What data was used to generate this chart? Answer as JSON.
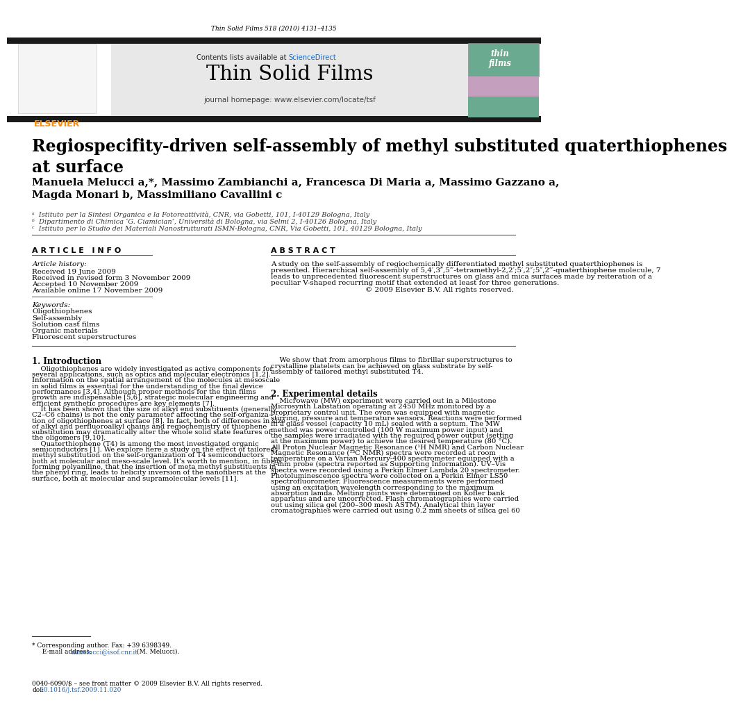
{
  "page_width": 9.92,
  "page_height": 13.23,
  "background_color": "#ffffff",
  "journal_header_text": "Thin Solid Films 518 (2010) 4131–4135",
  "journal_name": "Thin Solid Films",
  "journal_homepage": "journal homepage: www.elsevier.com/locate/tsf",
  "sciencedirect_text": "Contents lists available at ScienceDirect",
  "title": "Regiospecifity-driven self-assembly of methyl substituted quaterthiophenes\nat surface",
  "authors": "Manuela Melucci a,*, Massimo Zambianchi a, Francesca Di Maria a, Massimo Gazzano a,\nMagda Monari b, Massimiliano Cavallini c",
  "affil_a": "ᵃ  Istituto per la Sintesi Organica e la Fotoreattività, CNR, via Gobetti, 101, I-40129 Bologna, Italy",
  "affil_b": "ᵇ  Dipartimento di Chimica ‘G. Ciamician’, Università di Bologna, via Selmi 2, I-40126 Bologna, Italy",
  "affil_c": "ᶜ  Istituto per lo Studio dei Materiali Nanostrutturati ISMN-Bologna, CNR, Via Gobetti, 101, 40129 Bologna, Italy",
  "article_info_header": "A R T I C L E   I N F O",
  "abstract_header": "A B S T R A C T",
  "article_history_label": "Article history:",
  "received": "Received 19 June 2009",
  "received_revised": "Received in revised form 3 November 2009",
  "accepted": "Accepted 10 November 2009",
  "available_online": "Available online 17 November 2009",
  "keywords_label": "Keywords:",
  "keywords": [
    "Oligothiophenes",
    "Self-assembly",
    "Solution cast films",
    "Organic materials",
    "Fluorescent superstructures"
  ],
  "abstract_text": "A study on the self-assembly of regiochemically differentiated methyl substituted quaterthiophenes is\npresented. Hierarchical self-assembly of 5,4′,3″,5‴-tetramethyl-2,2′;5′,2″;5″,2‴-quaterthiophene molecule, 7\nleads to unprecedented fluorescent superstructures on glass and mica surfaces made by reiteration of a\npeculiar V-shaped recurring motif that extended at least for three generations.",
  "abstract_copyright": "© 2009 Elsevier B.V. All rights reserved.",
  "intro_header": "1. Introduction",
  "intro_text_lines": [
    "    Oligothiophenes are widely investigated as active components for",
    "several applications, such as optics and molecular electronics [1,2].",
    "Information on the spatial arrangement of the molecules at mesoscale",
    "in solid films is essential for the understanding of the final device",
    "performances [3,4]. Although proper methods for the thin films",
    "growth are indispensable [5,6], strategic molecular engineering and",
    "efficient synthetic procedures are key elements [7].",
    "    It has been shown that the size of alkyl end substituents (generally",
    "C2–C6 chains) is not the only parameter affecting the self-organiza-",
    "tion of oligothiophenes at surface [8]. In fact, both of differences in size",
    "of alkyl and perfluoroalkyl chains and regiochemistry of thiophene",
    "substitution may dramatically alter the whole solid state features of",
    "the oligomers [9,10].",
    "    Quaterthiophene (T4) is among the most investigated organic",
    "semiconductors [1]. We explore here a study on the effect of tailored",
    "methyl substitution on the self-organization of T4 semiconductors",
    "both at molecular and meso-scale level. It’s worth to mention, in fibrils",
    "forming polyaniline, that the insertion of meta methyl substituents in",
    "the phenyl ring, leads to helicity inversion of the nanofibers at the",
    "surface, both at molecular and supramolecular levels [11]."
  ],
  "intro_right_lines": [
    "    We show that from amorphous films to fibrillar superstructures to",
    "crystalline platelets can be achieved on glass substrate by self-",
    "assembly of tailored methyl substituted T4."
  ],
  "section2_header": "2. Experimental details",
  "section2_lines": [
    "    Microwave (MW) experiment were carried out in a Milestone",
    "Microsynth Labstation operating at 2450 MHz monitored by a",
    "proprietary control unit. The oven was equipped with magnetic",
    "stirring, pressure and temperature sensors. Reactions were performed",
    "in a glass vessel (capacity 10 mL) sealed with a septum. The MW",
    "method was power controlled (100 W maximum power input) and",
    "the samples were irradiated with the required power output (setting",
    "at the maximum power) to achieve the desired temperature (80 °C).",
    "All Proton Nuclear Magnetic Resonance (¹H NMR) and Carbon Nuclear",
    "Magnetic Resonance (¹³C NMR) spectra were recorded at room",
    "temperature on a Varian Mercury-400 spectrometer equipped with a",
    "5-mm probe (spectra reported as Supporting Information). UV–Vis",
    "spectra were recorded using a Perkin Elmer Lambda 20 spectrometer.",
    "Photoluminescence spectra were collected on a Perkin Elmer LS50",
    "spectrofluorometer. Fluorescence measurements were performed",
    "using an excitation wavelength corresponding to the maximum",
    "absorption lamda. Melting points were determined on Kofler bank",
    "apparatus and are uncorrected. Flash chromatographies were carried",
    "out using silica gel (200–300 mesh ASTM). Analytical thin layer",
    "cromatographies were carried out using 0.2 mm sheets of silica gel 60"
  ],
  "footnote_star": "* Corresponding author. Fax: +39 6398349.",
  "footnote_email_prefix": "  E-mail address: ",
  "footnote_email_link": "mmelucci@isof.cnr.it",
  "footnote_email_suffix": " (M. Melucci).",
  "footer_line1": "0040-6090/$ – see front matter © 2009 Elsevier B.V. All rights reserved.",
  "footer_doi_prefix": "doi:",
  "footer_doi_link": "10.1016/j.tsf.2009.11.020",
  "header_box_color": "#e8e8e8",
  "header_bar_color": "#1a1a1a",
  "elsevier_color": "#ff8c00",
  "sciencedirect_link_color": "#1565c0",
  "doi_link_color": "#1565c0",
  "ref_link_color": "#1565c0"
}
